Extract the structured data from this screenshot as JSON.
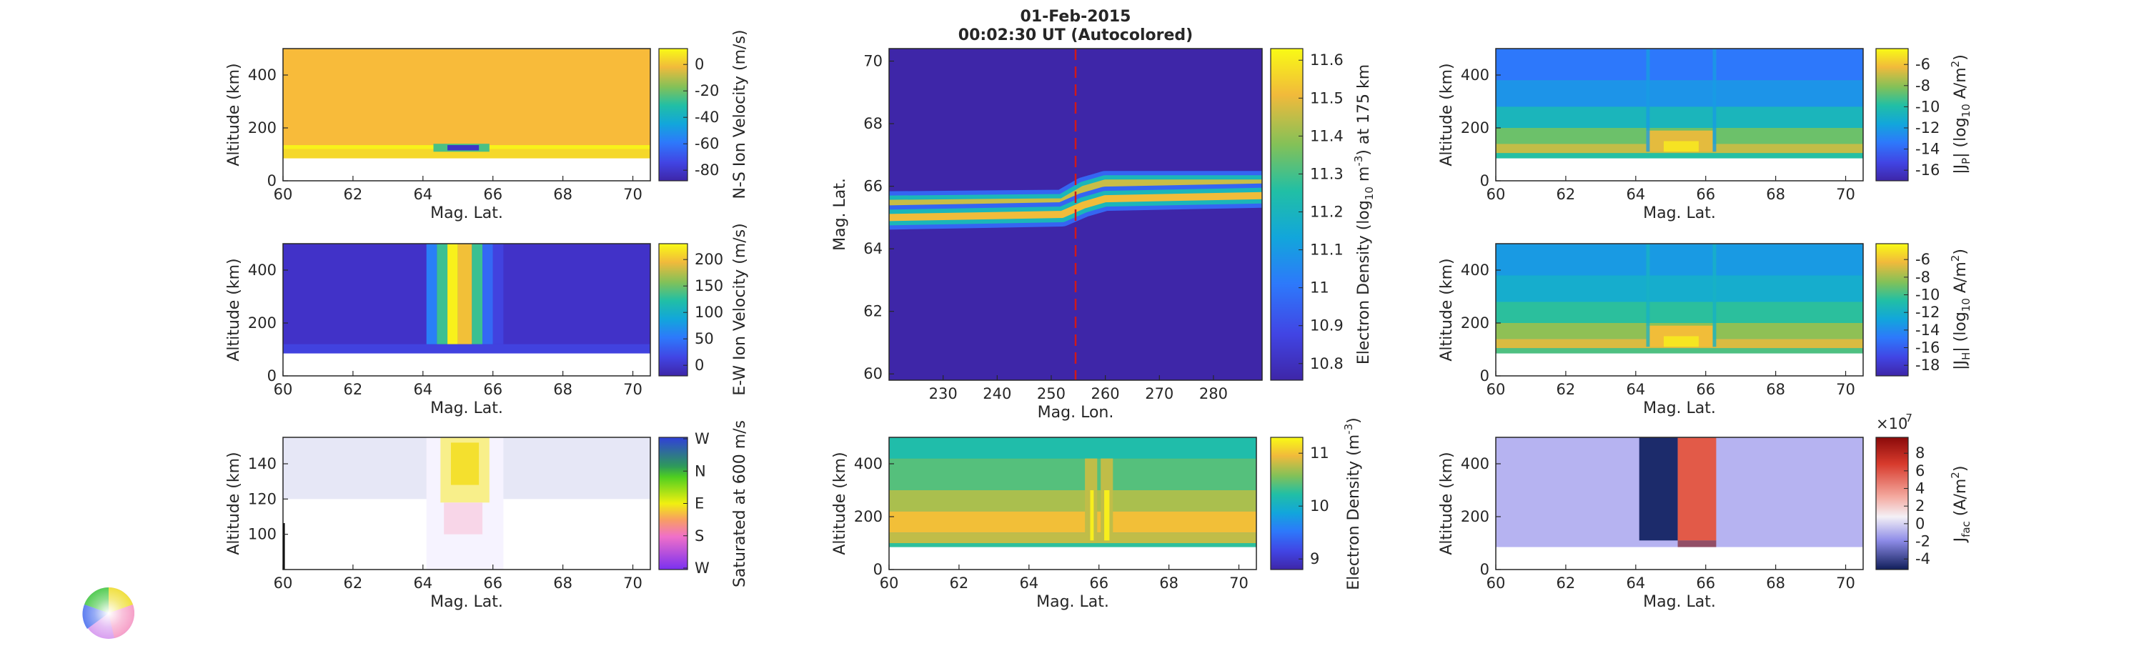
{
  "figure": {
    "title_line1": "01-Feb-2015",
    "title_line2": "00:02:30 UT (Autocolored)"
  },
  "colors": {
    "parula_dark": "#3e26a8",
    "parula_yellow": "#f9fb15",
    "ref_line": "#d0191a",
    "jfac_neg": "#1c2b6b",
    "jfac_pos": "#e25a48",
    "jfac_bg": "#b6b3f1"
  },
  "chart_data": [
    {
      "id": "ns-velocity",
      "type": "heatmap",
      "title": "",
      "xlabel": "Mag. Lat.",
      "ylabel": "Altitude (km)",
      "xlim": [
        60,
        70.5
      ],
      "ylim": [
        0,
        500
      ],
      "xticks": [
        "60",
        "62",
        "64",
        "66",
        "68",
        "70"
      ],
      "yticks": [
        "0",
        "200",
        "400"
      ],
      "colorbar_label": "N-S Ion Velocity (m/s)",
      "colorbar_ticks": [
        "0",
        "-20",
        "-40",
        "-60",
        "-80"
      ],
      "clim": [
        -95,
        8
      ]
    },
    {
      "id": "ew-velocity",
      "type": "heatmap",
      "title": "",
      "xlabel": "Mag. Lat.",
      "ylabel": "Altitude (km)",
      "xlim": [
        60,
        70.5
      ],
      "ylim": [
        0,
        500
      ],
      "xticks": [
        "60",
        "62",
        "64",
        "66",
        "68",
        "70"
      ],
      "yticks": [
        "0",
        "200",
        "400"
      ],
      "colorbar_label": "E-W Ion Velocity (m/s)",
      "colorbar_ticks": [
        "200",
        "150",
        "100",
        "50",
        "0"
      ],
      "clim": [
        -20,
        210
      ]
    },
    {
      "id": "flow-direction",
      "type": "heatmap",
      "title": "",
      "xlabel": "Mag. Lat.",
      "ylabel": "Altitude (km)",
      "xlim": [
        60,
        70.5
      ],
      "ylim": [
        80,
        155
      ],
      "xticks": [
        "60",
        "62",
        "64",
        "66",
        "68",
        "70"
      ],
      "yticks": [
        "100",
        "120",
        "140"
      ],
      "colorbar_label": "Saturated at 600 m/s",
      "colorbar_ticks": [
        "W",
        "N",
        "E",
        "S",
        "W"
      ]
    },
    {
      "id": "ne-map",
      "type": "heatmap",
      "title": "",
      "xlabel": "Mag. Lon.",
      "ylabel": "Mag. Lat.",
      "xlim": [
        220,
        289
      ],
      "ylim": [
        59.8,
        70.4
      ],
      "xticks": [
        "230",
        "240",
        "250",
        "260",
        "270",
        "280"
      ],
      "yticks": [
        "60",
        "62",
        "64",
        "66",
        "68",
        "70"
      ],
      "colorbar_ticks": [
        "11.6",
        "11.5",
        "11.4",
        "11.3",
        "11.2",
        "11.1",
        "11",
        "10.9",
        "10.8"
      ],
      "clim": [
        10.75,
        11.62
      ],
      "reference_line_lon": 254.5
    },
    {
      "id": "ne-altitude",
      "type": "heatmap",
      "title": "",
      "xlabel": "Mag. Lat.",
      "ylabel": "Altitude (km)",
      "xlim": [
        60,
        70.5
      ],
      "ylim": [
        0,
        500
      ],
      "xticks": [
        "60",
        "62",
        "64",
        "66",
        "68",
        "70"
      ],
      "yticks": [
        "0",
        "200",
        "400"
      ],
      "colorbar_ticks": [
        "11",
        "10",
        "9"
      ],
      "clim": [
        8.4,
        11.8
      ]
    },
    {
      "id": "jp",
      "type": "heatmap",
      "title": "",
      "xlabel": "Mag. Lat.",
      "ylabel": "Altitude (km)",
      "xlim": [
        60,
        70.5
      ],
      "ylim": [
        0,
        500
      ],
      "xticks": [
        "60",
        "62",
        "64",
        "66",
        "68",
        "70"
      ],
      "yticks": [
        "0",
        "200",
        "400"
      ],
      "colorbar_ticks": [
        "-6",
        "-8",
        "-10",
        "-12",
        "-14",
        "-16"
      ],
      "clim": [
        -17,
        -5.7
      ]
    },
    {
      "id": "jh",
      "type": "heatmap",
      "title": "",
      "xlabel": "Mag. Lat.",
      "ylabel": "Altitude (km)",
      "xlim": [
        60,
        70.5
      ],
      "ylim": [
        0,
        500
      ],
      "xticks": [
        "60",
        "62",
        "64",
        "66",
        "68",
        "70"
      ],
      "yticks": [
        "0",
        "200",
        "400"
      ],
      "colorbar_ticks": [
        "-6",
        "-8",
        "-10",
        "-12",
        "-14",
        "-16",
        "-18"
      ],
      "clim": [
        -19,
        -5.7
      ]
    },
    {
      "id": "jfac",
      "type": "heatmap",
      "title": "",
      "xlabel": "Mag. Lat.",
      "ylabel": "Altitude (km)",
      "xlim": [
        60,
        70.5
      ],
      "ylim": [
        0,
        500
      ],
      "xticks": [
        "60",
        "62",
        "64",
        "66",
        "68",
        "70"
      ],
      "yticks": [
        "0",
        "200",
        "400"
      ],
      "colorbar_ticks": [
        "8",
        "6",
        "4",
        "2",
        "0",
        "-2",
        "-4"
      ],
      "colorbar_exponent": "×10",
      "colorbar_exponent_power": "-7",
      "clim": [
        -5,
        8
      ]
    }
  ]
}
